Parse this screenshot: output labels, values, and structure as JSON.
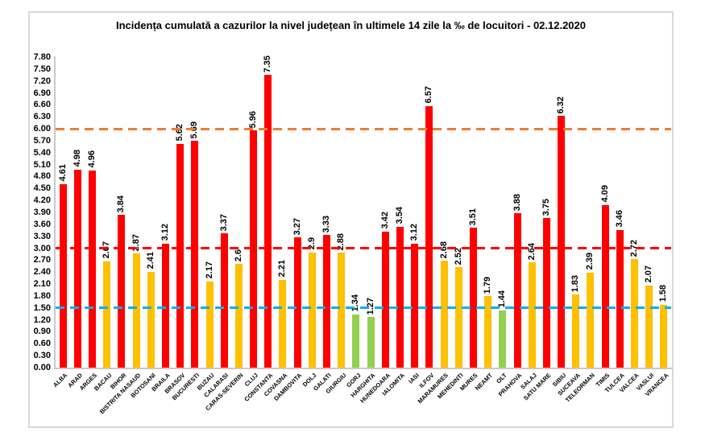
{
  "chart_data": {
    "type": "bar",
    "title": "Incidența cumulată a cazurilor la nivel județean în ultimele 14 zile la ‰ de locuitori - 02.12.2020",
    "categories": [
      "ALBA",
      "ARAD",
      "ARGES",
      "BACAU",
      "BIHOR",
      "BISTRITA NASAUD",
      "BOTOSANI",
      "BRAILA",
      "BRASOV",
      "BUCURESTI",
      "BUZAU",
      "CALARASI",
      "CARAS-SEVERIN",
      "CLUJ",
      "CONSTANTA",
      "COVASNA",
      "DAMBOVITA",
      "DOLJ",
      "GALATI",
      "GIURGIU",
      "GORJ",
      "HARGHITA",
      "HUNEDOARA",
      "IALOMITA",
      "IASI",
      "ILFOV",
      "MARAMURES",
      "MEHEDINTI",
      "MURES",
      "NEAMT",
      "OLT",
      "PRAHOVA",
      "SALAJ",
      "SATU MARE",
      "SIBIU",
      "SUCEAVA",
      "TELEORMAN",
      "TIMIS",
      "TULCEA",
      "VALCEA",
      "VASLUI",
      "VRANCEA"
    ],
    "values": [
      4.61,
      4.98,
      4.96,
      2.67,
      3.84,
      2.87,
      2.41,
      3.12,
      5.62,
      5.69,
      2.17,
      3.37,
      2.6,
      5.96,
      7.35,
      2.21,
      3.27,
      2.9,
      3.33,
      2.88,
      1.34,
      1.27,
      3.42,
      3.54,
      3.12,
      6.57,
      2.68,
      2.52,
      3.51,
      1.79,
      1.44,
      3.88,
      2.64,
      3.75,
      6.32,
      1.83,
      2.39,
      4.09,
      3.46,
      2.72,
      2.07,
      1.58
    ],
    "xlabel": "",
    "ylabel": "",
    "ylim": [
      0,
      7.8
    ],
    "ytick_step": 0.3,
    "ytick_decimals": 2,
    "grid": false,
    "legend": "none",
    "bar_color_rules": [
      {
        "min": 3.0,
        "color": "#FF0000",
        "name": "red-high"
      },
      {
        "min": 1.5,
        "color": "#FFC000",
        "name": "yellow-medium"
      },
      {
        "min": 0.0,
        "color": "#92D050",
        "name": "green-low"
      }
    ],
    "threshold_lines": [
      {
        "value": 6.0,
        "color": "#ED7D31",
        "name": "orange-threshold-6"
      },
      {
        "value": 3.0,
        "color": "#FF0000",
        "name": "red-threshold-3"
      },
      {
        "value": 1.5,
        "color": "#00B0F0",
        "name": "blue-threshold-1.5"
      }
    ],
    "axis_color": "#C9C9C9",
    "text_color": "#000000",
    "background_color": "#FFFFFF"
  }
}
